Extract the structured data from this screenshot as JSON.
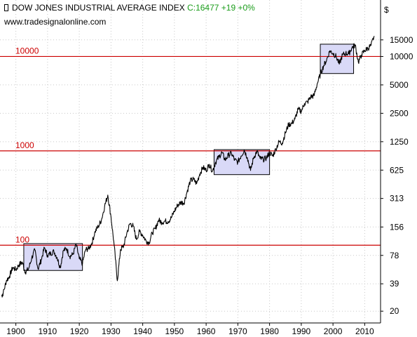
{
  "header": {
    "title": "DOW JONES INDUSTRIAL AVERAGE INDEX",
    "quote": "C:16477 +19 +0%",
    "url": "www.tradesignalonline.com"
  },
  "colors": {
    "price_line": "#000000",
    "reference_line": "#cc0000",
    "quote_text": "#1a9c1a",
    "range_box_fill": "#d9d9f7",
    "grid": "#c8c8c8"
  },
  "icons": {
    "bar_chart": "bar-chart-icon"
  },
  "chart_data": {
    "type": "line",
    "title": "DOW JONES INDUSTRIAL AVERAGE INDEX",
    "ylabel": "$",
    "yscale": "log",
    "ylim": [
      15,
      20000
    ],
    "xlim": [
      1895,
      2015
    ],
    "grid": true,
    "y_ticks": [
      20,
      39,
      78,
      156,
      313,
      625,
      1250,
      2500,
      5000,
      10000,
      15000
    ],
    "x_ticks": [
      1900,
      1910,
      1920,
      1930,
      1940,
      1950,
      1960,
      1970,
      1980,
      1990,
      2000,
      2010
    ],
    "reference_lines": [
      {
        "label": "100",
        "value": 100
      },
      {
        "label": "1000",
        "value": 1000
      },
      {
        "label": "10000",
        "value": 10000
      }
    ],
    "range_boxes": [
      {
        "x": [
          1902.5,
          1921
        ],
        "y": [
          54,
          104
        ]
      },
      {
        "x": [
          1962.5,
          1980
        ],
        "y": [
          560,
          1030
        ]
      },
      {
        "x": [
          1996,
          2006.5
        ],
        "y": [
          6600,
          13500
        ]
      }
    ],
    "series": [
      {
        "values": [
          [
            1895.5,
            29
          ],
          [
            1896,
            31
          ],
          [
            1897,
            42
          ],
          [
            1898,
            47
          ],
          [
            1899,
            58
          ],
          [
            1900,
            55
          ],
          [
            1901,
            62
          ],
          [
            1902,
            66
          ],
          [
            1903,
            52
          ],
          [
            1904,
            56
          ],
          [
            1905,
            73
          ],
          [
            1906,
            89
          ],
          [
            1907,
            56
          ],
          [
            1908,
            70
          ],
          [
            1909,
            94
          ],
          [
            1910,
            78
          ],
          [
            1911,
            82
          ],
          [
            1912,
            86
          ],
          [
            1913,
            74
          ],
          [
            1914,
            58
          ],
          [
            1915,
            88
          ],
          [
            1916,
            92
          ],
          [
            1917,
            76
          ],
          [
            1918,
            80
          ],
          [
            1919,
            102
          ],
          [
            1920,
            72
          ],
          [
            1921,
            64
          ],
          [
            1922,
            90
          ],
          [
            1923,
            92
          ],
          [
            1924,
            106
          ],
          [
            1925,
            140
          ],
          [
            1926,
            158
          ],
          [
            1927,
            186
          ],
          [
            1928,
            260
          ],
          [
            1929,
            340
          ],
          [
            1930,
            200
          ],
          [
            1931,
            100
          ],
          [
            1932,
            42
          ],
          [
            1933,
            90
          ],
          [
            1934,
            98
          ],
          [
            1935,
            135
          ],
          [
            1936,
            170
          ],
          [
            1937,
            160
          ],
          [
            1938,
            115
          ],
          [
            1939,
            140
          ],
          [
            1940,
            128
          ],
          [
            1941,
            112
          ],
          [
            1942,
            106
          ],
          [
            1943,
            135
          ],
          [
            1944,
            150
          ],
          [
            1945,
            185
          ],
          [
            1946,
            175
          ],
          [
            1947,
            180
          ],
          [
            1948,
            178
          ],
          [
            1949,
            195
          ],
          [
            1950,
            230
          ],
          [
            1951,
            265
          ],
          [
            1952,
            285
          ],
          [
            1953,
            280
          ],
          [
            1954,
            370
          ],
          [
            1955,
            480
          ],
          [
            1956,
            500
          ],
          [
            1957,
            450
          ],
          [
            1958,
            570
          ],
          [
            1959,
            670
          ],
          [
            1960,
            620
          ],
          [
            1961,
            720
          ],
          [
            1962,
            610
          ],
          [
            1963,
            760
          ],
          [
            1964,
            860
          ],
          [
            1965,
            960
          ],
          [
            1966,
            800
          ],
          [
            1967,
            900
          ],
          [
            1968,
            940
          ],
          [
            1969,
            800
          ],
          [
            1970,
            760
          ],
          [
            1971,
            880
          ],
          [
            1972,
            1020
          ],
          [
            1973,
            850
          ],
          [
            1974,
            620
          ],
          [
            1975,
            850
          ],
          [
            1976,
            990
          ],
          [
            1977,
            830
          ],
          [
            1978,
            810
          ],
          [
            1979,
            840
          ],
          [
            1980,
            960
          ],
          [
            1981,
            880
          ],
          [
            1982,
            1050
          ],
          [
            1983,
            1250
          ],
          [
            1984,
            1210
          ],
          [
            1985,
            1550
          ],
          [
            1986,
            1900
          ],
          [
            1987,
            1950
          ],
          [
            1988,
            2170
          ],
          [
            1989,
            2750
          ],
          [
            1990,
            2630
          ],
          [
            1991,
            3170
          ],
          [
            1992,
            3300
          ],
          [
            1993,
            3750
          ],
          [
            1994,
            3830
          ],
          [
            1995,
            5100
          ],
          [
            1996,
            6450
          ],
          [
            1997,
            7900
          ],
          [
            1998,
            9200
          ],
          [
            1999,
            11500
          ],
          [
            2000,
            10800
          ],
          [
            2001,
            10000
          ],
          [
            2002,
            8300
          ],
          [
            2003,
            10400
          ],
          [
            2004,
            10780
          ],
          [
            2005,
            10700
          ],
          [
            2006,
            12450
          ],
          [
            2007,
            13250
          ],
          [
            2008,
            8700
          ],
          [
            2009,
            10400
          ],
          [
            2010,
            11580
          ],
          [
            2011,
            12200
          ],
          [
            2012,
            13100
          ],
          [
            2013,
            16477
          ]
        ]
      }
    ]
  }
}
